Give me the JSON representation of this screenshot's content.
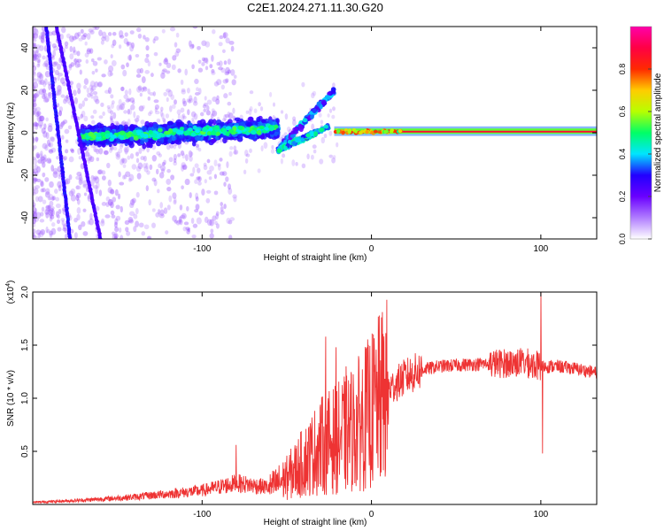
{
  "title": "C2E1.2024.271.11.30.G20",
  "chart_data": [
    {
      "type": "heatmap",
      "name": "spectrogram",
      "xlabel": "Height of straight line (km)",
      "ylabel": "Frequency (Hz)",
      "xlim": [
        -200,
        133
      ],
      "ylim": [
        -50,
        50
      ],
      "xticks": [
        -100,
        0,
        100
      ],
      "yticks": [
        -40,
        -20,
        0,
        20,
        40
      ],
      "colorbar": {
        "label": "Normalized spectral amplitude",
        "range": [
          0,
          1
        ],
        "ticks": [
          0.0,
          0.2,
          0.4,
          0.6,
          0.8
        ],
        "tick_labels": [
          "0.0",
          "0.2",
          "0.4",
          "0.6",
          "0.8"
        ],
        "colors": [
          "#ffffff",
          "#b07cff",
          "#6a00ff",
          "#2200ff",
          "#00e5ff",
          "#00ff66",
          "#b7ff00",
          "#ffcc00",
          "#ff2a00",
          "#ff0044",
          "#ff00aa"
        ]
      },
      "features": {
        "main_tone_hz": 0.5,
        "main_tone_start_km": -22,
        "broad_band_start_km": -172,
        "broad_band_end_km": -55,
        "upper_branch": {
          "from_km": -55,
          "to_km": -22,
          "from_hz": -8,
          "to_hz": 20
        },
        "lower_branch": {
          "from_km": -55,
          "to_km": -25,
          "from_hz": -8,
          "to_hz": 3
        },
        "diagonal_traces": [
          {
            "from_km": -192,
            "from_hz": 50,
            "to_km": -178,
            "to_hz": -50
          },
          {
            "from_km": -186,
            "from_hz": 50,
            "to_km": -160,
            "to_hz": -50
          }
        ]
      }
    },
    {
      "type": "line",
      "name": "snr",
      "xlabel": "Height of straight line (km)",
      "ylabel": "SNR (10 * v/v)",
      "scale_label": "(x10",
      "scale_exp": "4",
      "scale_close": ")",
      "xlim": [
        -200,
        133
      ],
      "ylim": [
        0,
        2.0
      ],
      "xticks": [
        -100,
        0,
        100
      ],
      "yticks": [
        0.5,
        1.0,
        1.5,
        2.0
      ],
      "ytick_labels": [
        "0.5",
        "1.0",
        "1.5",
        "2.0"
      ],
      "color": "#ee3333",
      "envelope": {
        "x": [
          -200,
          -170,
          -140,
          -120,
          -100,
          -80,
          -60,
          -50,
          -40,
          -30,
          -20,
          -10,
          0,
          10,
          20,
          30,
          40,
          60,
          80,
          90,
          100,
          110,
          120,
          133
        ],
        "y": [
          0.02,
          0.04,
          0.07,
          0.1,
          0.13,
          0.2,
          0.16,
          0.25,
          0.4,
          0.55,
          0.62,
          0.72,
          0.88,
          1.08,
          1.2,
          1.27,
          1.3,
          1.32,
          1.33,
          1.34,
          1.3,
          1.3,
          1.28,
          1.24
        ]
      },
      "peaks": [
        {
          "x": -80,
          "y": 0.56
        },
        {
          "x": -27,
          "y": 1.58
        },
        {
          "x": -21,
          "y": 1.48
        },
        {
          "x": -15,
          "y": 1.3
        },
        {
          "x": 100,
          "y": 2.0
        },
        {
          "x": 101,
          "y": 0.48
        }
      ]
    }
  ]
}
